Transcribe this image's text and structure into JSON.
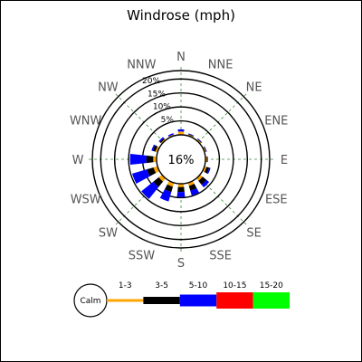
{
  "chart_data": {
    "type": "windrose",
    "title": "Windrose (mph)",
    "calm_percent_label": "16%",
    "calm_label": "Calm",
    "directions": [
      "N",
      "NNE",
      "NE",
      "ENE",
      "E",
      "ESE",
      "SE",
      "SSE",
      "S",
      "SSW",
      "SW",
      "WSW",
      "W",
      "WNW",
      "NW",
      "NNW"
    ],
    "radial_ticks": [
      {
        "value": 5,
        "label": "5%"
      },
      {
        "value": 10,
        "label": "10%"
      },
      {
        "value": 15,
        "label": "15%"
      },
      {
        "value": 20,
        "label": "20%"
      }
    ],
    "rmax": 23,
    "speed_bins": [
      {
        "label": "1-3",
        "color": "#ffa500"
      },
      {
        "label": "3-5",
        "color": "#000000"
      },
      {
        "label": "5-10",
        "color": "#0000ff"
      },
      {
        "label": "10-15",
        "color": "#ff0000"
      },
      {
        "label": "15-20",
        "color": "#00ff00"
      }
    ],
    "series": [
      {
        "bin": "1-3",
        "values": [
          1.2,
          0.5,
          0.5,
          0.5,
          0.5,
          0.8,
          1.2,
          1.2,
          1.2,
          1.5,
          1.5,
          1.5,
          1.2,
          0.8,
          0.5,
          0.5
        ]
      },
      {
        "bin": "3-5",
        "values": [
          0.0,
          0.2,
          0.2,
          0.2,
          0.2,
          1.0,
          1.8,
          1.8,
          1.8,
          2.0,
          2.5,
          2.5,
          2.5,
          1.0,
          0.5,
          0.0
        ]
      },
      {
        "bin": "5-10",
        "values": [
          0.8,
          0.2,
          0.2,
          0.2,
          0.2,
          0.5,
          1.2,
          1.8,
          1.8,
          3.5,
          5.5,
          5.5,
          5.8,
          0.5,
          0.5,
          0.5
        ]
      },
      {
        "bin": "10-15",
        "values": [
          0,
          0,
          0,
          0,
          0,
          0,
          0,
          0,
          0,
          0,
          0,
          0,
          0,
          0,
          0,
          0
        ]
      },
      {
        "bin": "15-20",
        "values": [
          0,
          0,
          0,
          0,
          0,
          0,
          0,
          0,
          0,
          0,
          0,
          0,
          0,
          0,
          0,
          0
        ]
      }
    ],
    "grid": true
  }
}
